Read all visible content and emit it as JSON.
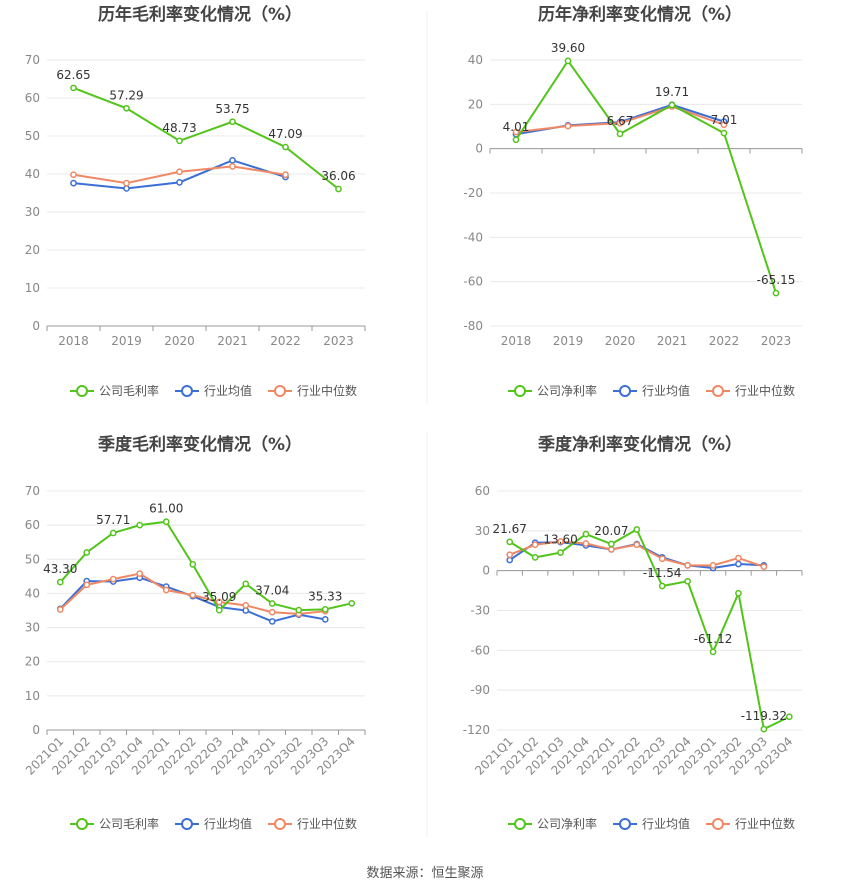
{
  "colors": {
    "company": "#52c41a",
    "avg": "#3b6fd6",
    "median": "#f08864",
    "grid": "#e8e8e8",
    "axis": "#999999"
  },
  "legend_labels": {
    "gross": [
      "公司毛利率",
      "行业均值",
      "行业中位数"
    ],
    "net": [
      "公司净利率",
      "行业均值",
      "行业中位数"
    ]
  },
  "source_text": "数据来源：恒生聚源",
  "chart_data": [
    {
      "type": "line",
      "title": "历年毛利率变化情况（%）",
      "categories": [
        "2018",
        "2019",
        "2020",
        "2021",
        "2022",
        "2023"
      ],
      "ylim": [
        0,
        70
      ],
      "yticks": [
        0,
        10,
        20,
        30,
        40,
        50,
        60,
        70
      ],
      "rotate_x": false,
      "series": [
        {
          "name": "公司毛利率",
          "values": [
            62.65,
            57.29,
            48.73,
            53.75,
            47.09,
            36.06
          ]
        },
        {
          "name": "行业均值",
          "values": [
            37.6,
            36.2,
            37.8,
            43.6,
            39.2,
            null
          ]
        },
        {
          "name": "行业中位数",
          "values": [
            39.8,
            37.6,
            40.6,
            42.0,
            39.8,
            null
          ]
        }
      ],
      "data_labels": [
        {
          "index": 0,
          "text": "62.65"
        },
        {
          "index": 1,
          "text": "57.29"
        },
        {
          "index": 2,
          "text": "48.73"
        },
        {
          "index": 3,
          "text": "53.75"
        },
        {
          "index": 4,
          "text": "47.09"
        },
        {
          "index": 5,
          "text": "36.06"
        }
      ]
    },
    {
      "type": "line",
      "title": "历年净利率变化情况（%）",
      "categories": [
        "2018",
        "2019",
        "2020",
        "2021",
        "2022",
        "2023"
      ],
      "ylim": [
        -80,
        40
      ],
      "yticks": [
        -80,
        -60,
        -40,
        -20,
        0,
        20,
        40
      ],
      "rotate_x": false,
      "series": [
        {
          "name": "公司净利率",
          "values": [
            4.01,
            39.6,
            6.67,
            19.71,
            7.01,
            -65.15
          ]
        },
        {
          "name": "行业均值",
          "values": [
            6.5,
            10.5,
            12.0,
            19.8,
            12.2,
            null
          ]
        },
        {
          "name": "行业中位数",
          "values": [
            7.5,
            10.2,
            11.5,
            19.0,
            10.8,
            null
          ]
        }
      ],
      "data_labels": [
        {
          "index": 0,
          "text": "4.01"
        },
        {
          "index": 1,
          "text": "39.60"
        },
        {
          "index": 2,
          "text": "6.67"
        },
        {
          "index": 3,
          "text": "19.71"
        },
        {
          "index": 4,
          "text": "7.01"
        },
        {
          "index": 5,
          "text": "-65.15"
        }
      ]
    },
    {
      "type": "line",
      "title": "季度毛利率变化情况（%）",
      "categories": [
        "2021Q1",
        "2021Q2",
        "2021Q3",
        "2021Q4",
        "2022Q1",
        "2022Q2",
        "2022Q3",
        "2022Q4",
        "2023Q1",
        "2023Q2",
        "2023Q3",
        "2023Q4"
      ],
      "ylim": [
        0,
        70
      ],
      "yticks": [
        0,
        10,
        20,
        30,
        40,
        50,
        60,
        70
      ],
      "rotate_x": true,
      "series": [
        {
          "name": "公司毛利率",
          "values": [
            43.3,
            52.0,
            57.71,
            60.0,
            61.0,
            48.5,
            35.09,
            42.8,
            37.04,
            35.1,
            35.33,
            37.1
          ]
        },
        {
          "name": "行业均值",
          "values": [
            35.5,
            43.6,
            43.5,
            44.6,
            42.0,
            39.2,
            36.0,
            35.0,
            31.8,
            33.8,
            32.4,
            null
          ]
        },
        {
          "name": "行业中位数",
          "values": [
            35.3,
            42.5,
            44.2,
            45.8,
            41.0,
            39.5,
            37.5,
            36.5,
            34.5,
            34.0,
            34.8,
            null
          ]
        }
      ],
      "data_labels": [
        {
          "index": 0,
          "text": "43.30"
        },
        {
          "index": 2,
          "text": "57.71"
        },
        {
          "index": 4,
          "text": "61.00"
        },
        {
          "index": 6,
          "text": "35.09"
        },
        {
          "index": 8,
          "text": "37.04"
        },
        {
          "index": 10,
          "text": "35.33"
        }
      ]
    },
    {
      "type": "line",
      "title": "季度净利率变化情况（%）",
      "categories": [
        "2021Q1",
        "2021Q2",
        "2021Q3",
        "2021Q4",
        "2022Q1",
        "2022Q2",
        "2022Q3",
        "2022Q4",
        "2023Q1",
        "2023Q2",
        "2023Q3",
        "2023Q4"
      ],
      "ylim": [
        -120,
        60
      ],
      "yticks": [
        -120,
        -90,
        -60,
        -30,
        0,
        30,
        60
      ],
      "rotate_x": true,
      "series": [
        {
          "name": "公司净利率",
          "values": [
            21.67,
            10.0,
            13.6,
            27.5,
            20.07,
            31.0,
            -11.54,
            -8.0,
            -61.12,
            -17.0,
            -119.32,
            -110.0
          ]
        },
        {
          "name": "行业均值",
          "values": [
            8.0,
            21.0,
            21.5,
            19.0,
            16.0,
            20.0,
            10.0,
            4.0,
            2.0,
            5.0,
            4.0,
            null
          ]
        },
        {
          "name": "行业中位数",
          "values": [
            12.0,
            19.5,
            22.0,
            20.5,
            16.0,
            19.5,
            9.0,
            4.0,
            4.0,
            9.5,
            3.0,
            null
          ]
        }
      ],
      "data_labels": [
        {
          "index": 0,
          "text": "21.67"
        },
        {
          "index": 2,
          "text": "13.60"
        },
        {
          "index": 4,
          "text": "20.07"
        },
        {
          "index": 6,
          "text": "-11.54"
        },
        {
          "index": 8,
          "text": "-61.12"
        },
        {
          "index": 10,
          "text": "-119.32"
        }
      ]
    }
  ]
}
